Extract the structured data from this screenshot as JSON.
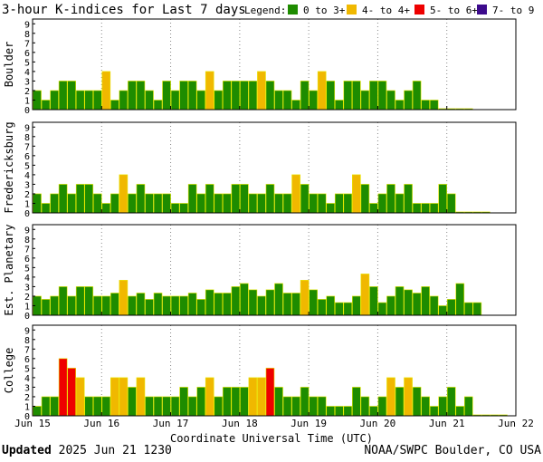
{
  "title": "3-hour K-indices for Last 7 days",
  "legend": {
    "label": "Legend:",
    "items": [
      {
        "label": "0 to 3+",
        "color": "#1e8c00"
      },
      {
        "label": "4- to 4+",
        "color": "#f0b800"
      },
      {
        "label": "5- to 6+",
        "color": "#ee0000"
      },
      {
        "label": "7- to 9",
        "color": "#3c0a8c"
      }
    ]
  },
  "colors": {
    "quiet": "#1e8c00",
    "unsettled": "#f0b800",
    "storm": "#ee0000",
    "severe": "#3c0a8c",
    "outline": "#e8e800"
  },
  "xlabel": "Coordinate Universal Time (UTC)",
  "footer": {
    "updated_label": "Updated",
    "updated_value": "2025 Jun 21 1230",
    "credit": "NOAA/SWPC Boulder, CO USA"
  },
  "chart_data": {
    "type": "bar",
    "x_ticks": [
      "Jun 15",
      "Jun 16",
      "Jun 17",
      "Jun 18",
      "Jun 19",
      "Jun 20",
      "Jun 21",
      "Jun 22"
    ],
    "y_ticks": [
      "0",
      "1",
      "2",
      "3",
      "4",
      "5",
      "6",
      "7",
      "8",
      "9"
    ],
    "ylim": [
      0,
      9
    ],
    "bins_per_day": 8,
    "grid": true,
    "panels": [
      {
        "name": "Boulder",
        "values": [
          2,
          1,
          2,
          3,
          3,
          2,
          2,
          2,
          4,
          1,
          2,
          3,
          3,
          2,
          1,
          3,
          2,
          3,
          3,
          2,
          4,
          2,
          3,
          3,
          3,
          3,
          4,
          3,
          2,
          2,
          1,
          3,
          2,
          4,
          3,
          1,
          3,
          3,
          2,
          3,
          3,
          2,
          1,
          2,
          3,
          1,
          1,
          0.1,
          0.1,
          0.1,
          0.1
        ]
      },
      {
        "name": "Fredericksburg",
        "values": [
          2,
          1,
          2,
          3,
          2,
          3,
          3,
          2,
          1,
          2,
          4,
          2,
          3,
          2,
          2,
          2,
          1,
          1,
          3,
          2,
          3,
          2,
          2,
          3,
          3,
          2,
          2,
          3,
          2,
          2,
          4,
          3,
          2,
          2,
          1,
          2,
          2,
          4,
          3,
          1,
          2,
          3,
          2,
          3,
          1,
          1,
          1,
          3,
          2,
          0.1,
          0.1,
          0.1,
          0.1
        ]
      },
      {
        "name": "Est. Planetary",
        "values": [
          2,
          1.67,
          2,
          3,
          2,
          3,
          3,
          2,
          2,
          2.33,
          3.67,
          2,
          2.33,
          1.67,
          2.33,
          2,
          2,
          2,
          2.33,
          1.67,
          2.67,
          2.33,
          2.33,
          3,
          3.33,
          2.67,
          2,
          2.67,
          3.33,
          2.33,
          2.33,
          3.67,
          2.67,
          1.67,
          2,
          1.33,
          1.33,
          2,
          4.33,
          3,
          1.33,
          2,
          3,
          2.67,
          2.33,
          3,
          2,
          1,
          1.67,
          3.33,
          1.33,
          1.33
        ]
      },
      {
        "name": "College",
        "values": [
          1,
          2,
          2,
          6,
          5,
          4,
          2,
          2,
          2,
          4,
          4,
          3,
          4,
          2,
          2,
          2,
          2,
          3,
          2,
          3,
          4,
          2,
          3,
          3,
          3,
          4,
          4,
          5,
          3,
          2,
          2,
          3,
          2,
          2,
          1,
          1,
          1,
          3,
          2,
          1,
          2,
          4,
          3,
          4,
          3,
          2,
          1,
          2,
          3,
          1,
          2,
          0.1,
          0.1,
          0.1,
          0.1
        ]
      }
    ]
  }
}
